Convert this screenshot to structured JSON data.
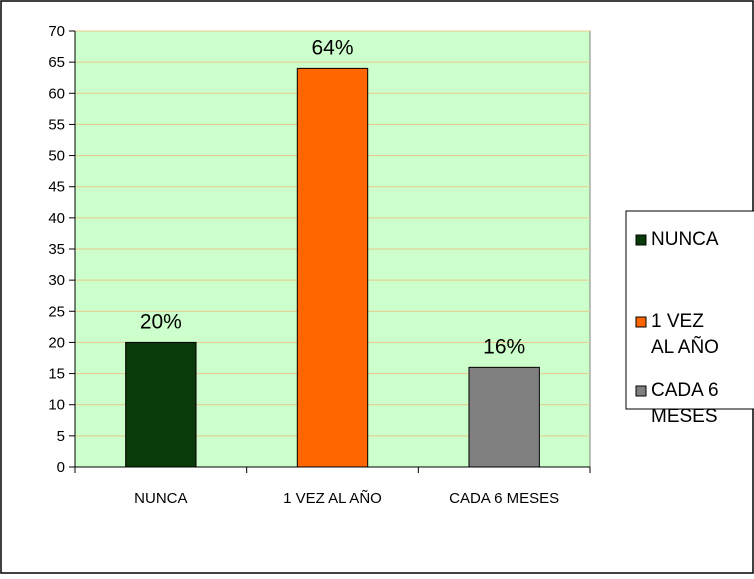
{
  "chart_data": {
    "type": "bar",
    "categories": [
      "NUNCA",
      "1 VEZ AL AÑO",
      "CADA 6 MESES"
    ],
    "values": [
      20,
      64,
      16
    ],
    "data_labels": [
      "20%",
      "64%",
      "16%"
    ],
    "colors": [
      "#0a3a0a",
      "#ff6600",
      "#808080"
    ],
    "ylim": [
      0,
      70
    ],
    "ytick_step": 5,
    "grid": true,
    "plot_background": "#ccffcc",
    "gridline_color": "#e8c98a",
    "legend_placement": "right",
    "legend": [
      {
        "lines": [
          "NUNCA"
        ],
        "color": "#0a3a0a"
      },
      {
        "lines": [
          "1 VEZ",
          "AL AÑO"
        ],
        "color": "#ff6600"
      },
      {
        "lines": [
          "CADA 6",
          "MESES"
        ],
        "color": "#808080"
      }
    ]
  }
}
